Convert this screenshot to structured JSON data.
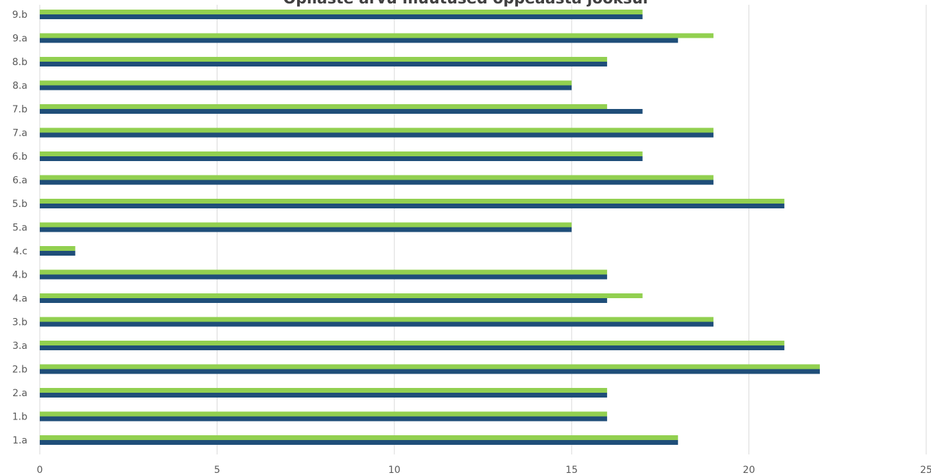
{
  "chart_data": {
    "type": "bar",
    "orientation": "horizontal",
    "title": "Õpilaste arvu muutused õppeaasta jooksul",
    "categories": [
      "1.a",
      "1.b",
      "2.a",
      "2.b",
      "3.a",
      "3.b",
      "4.a",
      "4.b",
      "4.c",
      "5.a",
      "5.b",
      "6.a",
      "6.b",
      "7.a",
      "7.b",
      "8.a",
      "8.b",
      "9.a",
      "9.b"
    ],
    "series": [
      {
        "color": "#1F4E79",
        "values": [
          18,
          16,
          16,
          22,
          21,
          19,
          16,
          16,
          1,
          15,
          21,
          19,
          17,
          19,
          17,
          15,
          16,
          18,
          17
        ]
      },
      {
        "color": "#92D050",
        "values": [
          18,
          16,
          16,
          22,
          21,
          19,
          17,
          16,
          1,
          15,
          21,
          19,
          17,
          19,
          16,
          15,
          16,
          19,
          17
        ]
      }
    ],
    "xlim": [
      0,
      25
    ],
    "x_ticks": [
      "0",
      "5",
      "10",
      "15",
      "20",
      "25"
    ],
    "grid": true,
    "legend": "none"
  }
}
